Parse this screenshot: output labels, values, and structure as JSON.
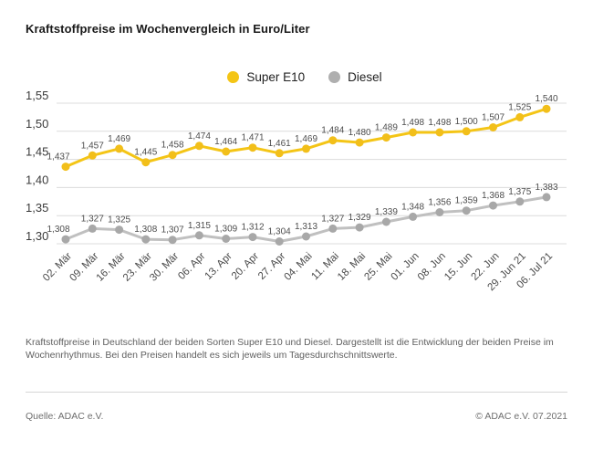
{
  "header": {
    "title": "Kraftstoffpreise im Wochenvergleich in Euro/Liter"
  },
  "legend": {
    "items": [
      {
        "label": "Super E10",
        "color": "#F4C516"
      },
      {
        "label": "Diesel",
        "color": "#AFAFAF"
      }
    ]
  },
  "chart_data": {
    "type": "line",
    "title": "Kraftstoffpreise im Wochenvergleich in Euro/Liter",
    "xlabel": "",
    "ylabel": "Euro/Liter",
    "ylim": [
      1.3,
      1.55
    ],
    "grid": true,
    "legend_position": "top-center",
    "x": [
      "02. Mär",
      "09. Mär",
      "16. Mär",
      "23. Mär",
      "30. Mär",
      "06. Apr",
      "13. Apr",
      "20. Apr",
      "27. Apr",
      "04. Mai",
      "11. Mai",
      "18. Mai",
      "25. Mai",
      "01. Jun",
      "08. Jun",
      "15. Jun",
      "22. Jun",
      "29. Jun 21",
      "06. Jul 21"
    ],
    "yticks": {
      "values": [
        1.55,
        1.5,
        1.45,
        1.4,
        1.35,
        1.3
      ],
      "labels": [
        "1,55",
        "1,50",
        "1,45",
        "1,40",
        "1,35",
        "1,30"
      ]
    },
    "series": [
      {
        "name": "Super E10",
        "line_color": "#F4C516",
        "marker_color": "#F2BF1A",
        "values": [
          1.437,
          1.457,
          1.469,
          1.445,
          1.458,
          1.474,
          1.464,
          1.471,
          1.461,
          1.469,
          1.484,
          1.48,
          1.489,
          1.498,
          1.498,
          1.5,
          1.507,
          1.525,
          1.54
        ],
        "point_labels": [
          "1,437",
          "1,457",
          "1,469",
          "1,445",
          "1,458",
          "1,474",
          "1,464",
          "1,471",
          "1,461",
          "1,469",
          "1,484",
          "1,480",
          "1,489",
          "1,498",
          "1,498",
          "1,500",
          "1,507",
          "1,525",
          "1,540"
        ]
      },
      {
        "name": "Diesel",
        "line_color": "#C0C0C0",
        "marker_color": "#A8A8A8",
        "values": [
          1.308,
          1.327,
          1.325,
          1.308,
          1.307,
          1.315,
          1.309,
          1.312,
          1.304,
          1.313,
          1.327,
          1.329,
          1.339,
          1.348,
          1.356,
          1.359,
          1.368,
          1.375,
          1.383
        ],
        "point_labels": [
          "1,308",
          "1,327",
          "1,325",
          "1,308",
          "1,307",
          "1,315",
          "1,309",
          "1,312",
          "1,304",
          "1,313",
          "1,327",
          "1,329",
          "1,339",
          "1,348",
          "1,356",
          "1,359",
          "1,368",
          "1,375",
          "1,383"
        ]
      }
    ]
  },
  "description": {
    "text": "Kraftstoffpreise in Deutschland der beiden Sorten Super E10 und Diesel. Dargestellt ist die Entwicklung der beiden Preise im Wochenrhythmus. Bei den Preisen handelt es sich jeweils um Tagesdurchschnittswerte."
  },
  "footer": {
    "source": "Quelle: ADAC e.V.",
    "copyright": "© ADAC e.V. 07.2021"
  },
  "colors": {
    "accent_yellow": "#F4C516",
    "diesel_gray": "#A8A8A8",
    "grid": "#DCDCDC",
    "text_dark": "#191919",
    "text_gray": "#5F5F5F"
  }
}
